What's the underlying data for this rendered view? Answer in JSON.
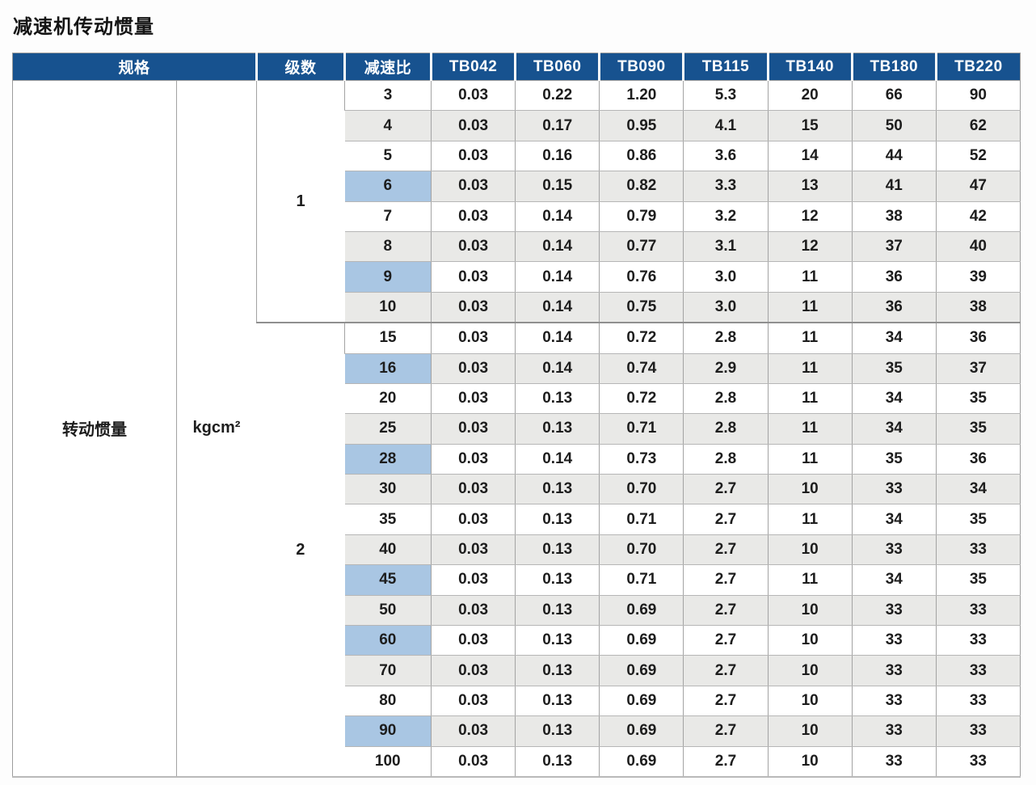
{
  "page_title": "减速机传动惯量",
  "colors": {
    "header_bg": "#17528f",
    "header_fg": "#ffffff",
    "highlight_blue": "#a9c6e3",
    "alt_row_gray": "#e9e9e7"
  },
  "table": {
    "header": {
      "spec": "规格",
      "stages": "级数",
      "ratio": "减速比",
      "models": [
        "TB042",
        "TB060",
        "TB090",
        "TB115",
        "TB140",
        "TB180",
        "TB220"
      ]
    },
    "spec_label": "转动惯量",
    "unit_label": "kgcm²",
    "sections": [
      {
        "stage": "1",
        "rows": [
          {
            "ratio": "3",
            "highlight": false,
            "values": [
              "0.03",
              "0.22",
              "1.20",
              "5.3",
              "20",
              "66",
              "90"
            ]
          },
          {
            "ratio": "4",
            "highlight": false,
            "values": [
              "0.03",
              "0.17",
              "0.95",
              "4.1",
              "15",
              "50",
              "62"
            ]
          },
          {
            "ratio": "5",
            "highlight": false,
            "values": [
              "0.03",
              "0.16",
              "0.86",
              "3.6",
              "14",
              "44",
              "52"
            ]
          },
          {
            "ratio": "6",
            "highlight": true,
            "values": [
              "0.03",
              "0.15",
              "0.82",
              "3.3",
              "13",
              "41",
              "47"
            ]
          },
          {
            "ratio": "7",
            "highlight": false,
            "values": [
              "0.03",
              "0.14",
              "0.79",
              "3.2",
              "12",
              "38",
              "42"
            ]
          },
          {
            "ratio": "8",
            "highlight": false,
            "values": [
              "0.03",
              "0.14",
              "0.77",
              "3.1",
              "12",
              "37",
              "40"
            ]
          },
          {
            "ratio": "9",
            "highlight": true,
            "values": [
              "0.03",
              "0.14",
              "0.76",
              "3.0",
              "11",
              "36",
              "39"
            ]
          },
          {
            "ratio": "10",
            "highlight": false,
            "values": [
              "0.03",
              "0.14",
              "0.75",
              "3.0",
              "11",
              "36",
              "38"
            ]
          }
        ]
      },
      {
        "stage": "2",
        "rows": [
          {
            "ratio": "15",
            "highlight": false,
            "values": [
              "0.03",
              "0.14",
              "0.72",
              "2.8",
              "11",
              "34",
              "36"
            ]
          },
          {
            "ratio": "16",
            "highlight": true,
            "values": [
              "0.03",
              "0.14",
              "0.74",
              "2.9",
              "11",
              "35",
              "37"
            ]
          },
          {
            "ratio": "20",
            "highlight": false,
            "values": [
              "0.03",
              "0.13",
              "0.72",
              "2.8",
              "11",
              "34",
              "35"
            ]
          },
          {
            "ratio": "25",
            "highlight": false,
            "values": [
              "0.03",
              "0.13",
              "0.71",
              "2.8",
              "11",
              "34",
              "35"
            ]
          },
          {
            "ratio": "28",
            "highlight": true,
            "values": [
              "0.03",
              "0.14",
              "0.73",
              "2.8",
              "11",
              "35",
              "36"
            ]
          },
          {
            "ratio": "30",
            "highlight": false,
            "values": [
              "0.03",
              "0.13",
              "0.70",
              "2.7",
              "10",
              "33",
              "34"
            ]
          },
          {
            "ratio": "35",
            "highlight": false,
            "values": [
              "0.03",
              "0.13",
              "0.71",
              "2.7",
              "11",
              "34",
              "35"
            ]
          },
          {
            "ratio": "40",
            "highlight": false,
            "values": [
              "0.03",
              "0.13",
              "0.70",
              "2.7",
              "10",
              "33",
              "33"
            ]
          },
          {
            "ratio": "45",
            "highlight": true,
            "values": [
              "0.03",
              "0.13",
              "0.71",
              "2.7",
              "11",
              "34",
              "35"
            ]
          },
          {
            "ratio": "50",
            "highlight": false,
            "values": [
              "0.03",
              "0.13",
              "0.69",
              "2.7",
              "10",
              "33",
              "33"
            ]
          },
          {
            "ratio": "60",
            "highlight": true,
            "values": [
              "0.03",
              "0.13",
              "0.69",
              "2.7",
              "10",
              "33",
              "33"
            ]
          },
          {
            "ratio": "70",
            "highlight": false,
            "values": [
              "0.03",
              "0.13",
              "0.69",
              "2.7",
              "10",
              "33",
              "33"
            ]
          },
          {
            "ratio": "80",
            "highlight": false,
            "values": [
              "0.03",
              "0.13",
              "0.69",
              "2.7",
              "10",
              "33",
              "33"
            ]
          },
          {
            "ratio": "90",
            "highlight": true,
            "values": [
              "0.03",
              "0.13",
              "0.69",
              "2.7",
              "10",
              "33",
              "33"
            ]
          },
          {
            "ratio": "100",
            "highlight": false,
            "values": [
              "0.03",
              "0.13",
              "0.69",
              "2.7",
              "10",
              "33",
              "33"
            ]
          }
        ]
      }
    ]
  }
}
